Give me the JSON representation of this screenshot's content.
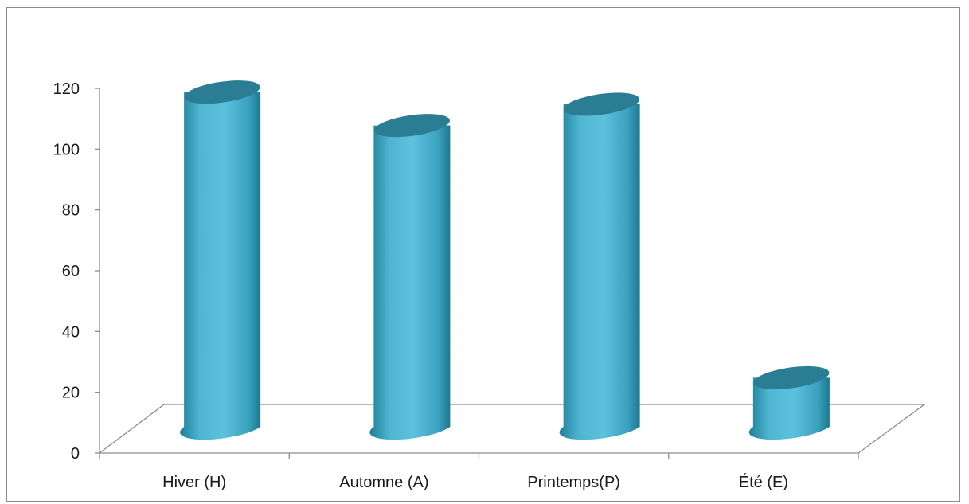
{
  "chart_data": {
    "type": "bar",
    "categories": [
      "Hiver (H)",
      "Automne (A)",
      "Printemps(P)",
      "Été (E)"
    ],
    "values": [
      118,
      107,
      114,
      24
    ],
    "ylim": [
      0,
      120
    ],
    "yticks": [
      0,
      20,
      40,
      60,
      80,
      100,
      120
    ],
    "title": "",
    "xlabel": "",
    "ylabel": "",
    "legend": "none",
    "grid": false,
    "colors": {
      "bar_light": "#56bcd8",
      "bar_mid": "#39a6c3",
      "bar_dark": "#1f7f99",
      "bar_top": "#2a7d93",
      "axis": "#8c8c8c"
    }
  }
}
